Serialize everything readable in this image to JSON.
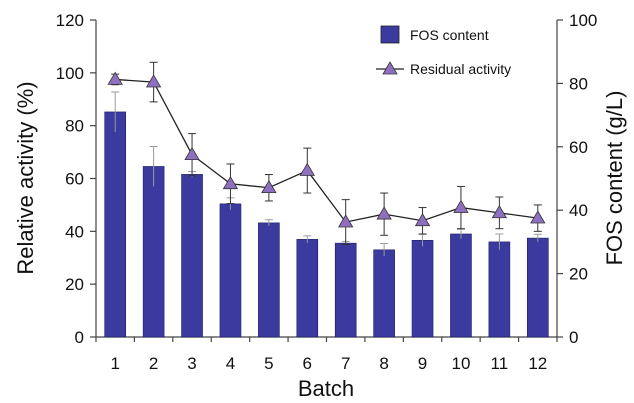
{
  "chart_data": {
    "type": "bar",
    "categories": [
      "1",
      "2",
      "3",
      "4",
      "5",
      "6",
      "7",
      "8",
      "9",
      "10",
      "11",
      "12"
    ],
    "bar_series": {
      "name": "FOS content",
      "axis": "right",
      "values": [
        71,
        53.8,
        51.3,
        42,
        36,
        30.8,
        29.6,
        27.5,
        30.5,
        32.5,
        30,
        31.2
      ],
      "errors": [
        6.3,
        6.3,
        0.9,
        1.9,
        1,
        1.1,
        0.5,
        2,
        1.9,
        1.5,
        2.5,
        1.2
      ],
      "color": "#3b3a9e"
    },
    "line_series": {
      "name": "Residual activity",
      "axis": "left",
      "values": [
        97.5,
        96.5,
        69,
        58,
        56.5,
        63,
        43.5,
        46.5,
        44,
        49,
        47,
        45
      ],
      "errors": [
        2,
        7.5,
        8,
        7.5,
        5,
        8.5,
        8.5,
        8,
        5,
        8,
        6,
        5
      ],
      "color": "#8e6fc0",
      "line_color": "#222222"
    },
    "left_axis": {
      "label": "Relative activity (%)",
      "min": 0,
      "max": 120,
      "ticks": [
        0,
        20,
        40,
        60,
        80,
        100,
        120
      ]
    },
    "right_axis": {
      "label": "FOS content (g/L)",
      "min": 0,
      "max": 100,
      "ticks": [
        0,
        20,
        40,
        60,
        80,
        100
      ]
    },
    "x_axis": {
      "label": "Batch"
    },
    "legend": {
      "placement": "top-right",
      "entries": [
        "FOS content",
        "Residual activity"
      ]
    },
    "grid": false
  }
}
